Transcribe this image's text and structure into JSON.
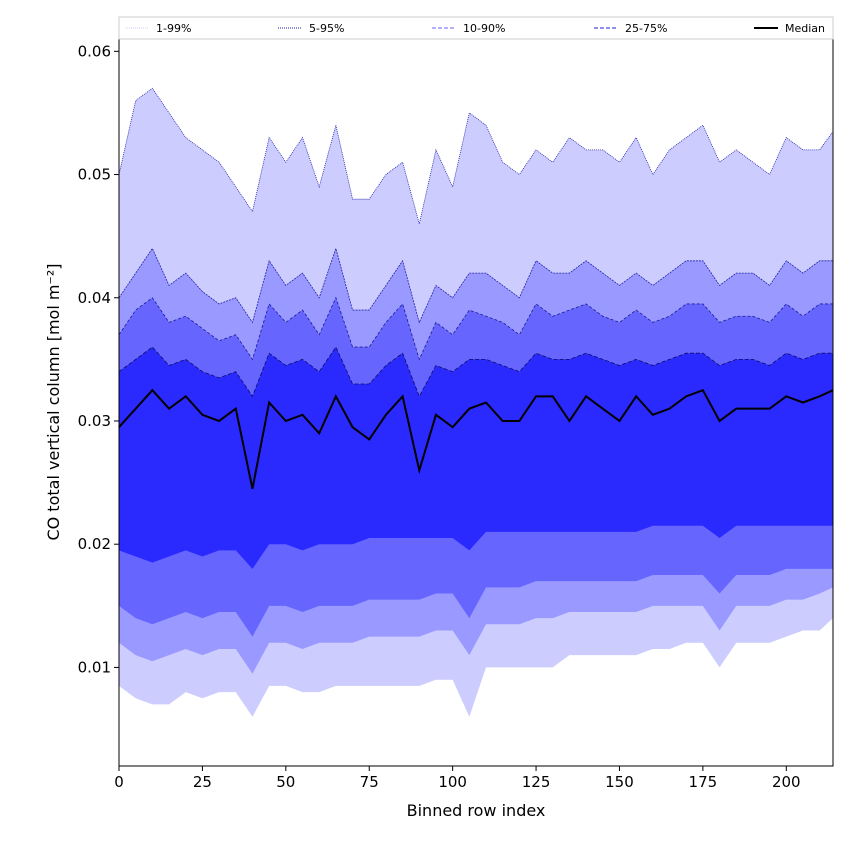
{
  "chart_data": {
    "type": "area",
    "title": "",
    "xlabel": "Binned row index",
    "ylabel": "CO total vertical column [mol m⁻²]",
    "xlim": [
      0,
      214
    ],
    "ylim": [
      0.002,
      0.061
    ],
    "xticks": [
      0,
      25,
      50,
      75,
      100,
      125,
      150,
      175,
      200
    ],
    "yticks": [
      0.01,
      0.02,
      0.03,
      0.04,
      0.05,
      0.06
    ],
    "ytick_labels": [
      "0.01",
      "0.02",
      "0.03",
      "0.04",
      "0.05",
      "0.06"
    ],
    "grid": false,
    "legend_position": "top",
    "legend": [
      {
        "label": "1-99%",
        "color": "#ccccff",
        "style": "dotted"
      },
      {
        "label": "5-95%",
        "color": "#2222aa",
        "style": "dotted"
      },
      {
        "label": "10-90%",
        "color": "#6666ff",
        "style": "dashed"
      },
      {
        "label": "25-75%",
        "color": "#2222dd",
        "style": "dashed"
      },
      {
        "label": "Median",
        "color": "#000000",
        "style": "solid"
      }
    ],
    "x": [
      0,
      5,
      10,
      15,
      20,
      25,
      30,
      35,
      40,
      45,
      50,
      55,
      60,
      65,
      70,
      75,
      80,
      85,
      90,
      95,
      100,
      105,
      110,
      115,
      120,
      125,
      130,
      135,
      140,
      145,
      150,
      155,
      160,
      165,
      170,
      175,
      180,
      185,
      190,
      195,
      200,
      205,
      210,
      214
    ],
    "bands": [
      {
        "name": "1-99%",
        "color": "#ccccff",
        "lower": [
          0.0085,
          0.0075,
          0.007,
          0.007,
          0.008,
          0.0075,
          0.008,
          0.008,
          0.006,
          0.0085,
          0.0085,
          0.008,
          0.008,
          0.0085,
          0.0085,
          0.0085,
          0.0085,
          0.0085,
          0.0085,
          0.009,
          0.009,
          0.006,
          0.01,
          0.01,
          0.01,
          0.01,
          0.01,
          0.011,
          0.011,
          0.011,
          0.011,
          0.011,
          0.0115,
          0.0115,
          0.012,
          0.012,
          0.01,
          0.012,
          0.012,
          0.012,
          0.0125,
          0.013,
          0.013,
          0.014
        ],
        "upper": [
          0.05,
          0.056,
          0.057,
          0.055,
          0.053,
          0.052,
          0.051,
          0.049,
          0.047,
          0.053,
          0.051,
          0.053,
          0.049,
          0.054,
          0.048,
          0.048,
          0.05,
          0.051,
          0.046,
          0.052,
          0.049,
          0.055,
          0.054,
          0.051,
          0.05,
          0.052,
          0.051,
          0.053,
          0.052,
          0.052,
          0.051,
          0.053,
          0.05,
          0.052,
          0.053,
          0.054,
          0.051,
          0.052,
          0.051,
          0.05,
          0.053,
          0.052,
          0.052,
          0.0535
        ]
      },
      {
        "name": "5-95%",
        "color": "#9999ff",
        "lower": [
          0.012,
          0.011,
          0.0105,
          0.011,
          0.0115,
          0.011,
          0.0115,
          0.0115,
          0.0095,
          0.012,
          0.012,
          0.0115,
          0.012,
          0.012,
          0.012,
          0.0125,
          0.0125,
          0.0125,
          0.0125,
          0.013,
          0.013,
          0.011,
          0.0135,
          0.0135,
          0.0135,
          0.014,
          0.014,
          0.0145,
          0.0145,
          0.0145,
          0.0145,
          0.0145,
          0.015,
          0.015,
          0.015,
          0.015,
          0.013,
          0.015,
          0.015,
          0.015,
          0.0155,
          0.0155,
          0.016,
          0.0165
        ],
        "upper": [
          0.04,
          0.042,
          0.044,
          0.041,
          0.042,
          0.0405,
          0.0395,
          0.04,
          0.038,
          0.043,
          0.041,
          0.042,
          0.04,
          0.044,
          0.039,
          0.039,
          0.041,
          0.043,
          0.038,
          0.041,
          0.04,
          0.042,
          0.042,
          0.041,
          0.04,
          0.043,
          0.042,
          0.042,
          0.043,
          0.042,
          0.041,
          0.042,
          0.041,
          0.042,
          0.043,
          0.043,
          0.041,
          0.042,
          0.042,
          0.041,
          0.043,
          0.042,
          0.043,
          0.043
        ]
      },
      {
        "name": "10-90%",
        "color": "#6666ff",
        "lower": [
          0.015,
          0.014,
          0.0135,
          0.014,
          0.0145,
          0.014,
          0.0145,
          0.0145,
          0.0125,
          0.015,
          0.015,
          0.0145,
          0.015,
          0.015,
          0.015,
          0.0155,
          0.0155,
          0.0155,
          0.0155,
          0.016,
          0.016,
          0.014,
          0.0165,
          0.0165,
          0.0165,
          0.017,
          0.017,
          0.017,
          0.017,
          0.017,
          0.017,
          0.017,
          0.0175,
          0.0175,
          0.0175,
          0.0175,
          0.016,
          0.0175,
          0.0175,
          0.0175,
          0.018,
          0.018,
          0.018,
          0.018
        ],
        "upper": [
          0.037,
          0.039,
          0.04,
          0.038,
          0.0385,
          0.0375,
          0.0365,
          0.037,
          0.035,
          0.0395,
          0.038,
          0.039,
          0.037,
          0.04,
          0.036,
          0.036,
          0.038,
          0.0395,
          0.035,
          0.038,
          0.037,
          0.039,
          0.0385,
          0.038,
          0.037,
          0.0395,
          0.0385,
          0.039,
          0.0395,
          0.0385,
          0.038,
          0.039,
          0.038,
          0.0385,
          0.0395,
          0.0395,
          0.038,
          0.0385,
          0.0385,
          0.038,
          0.0395,
          0.0385,
          0.0395,
          0.0395
        ]
      },
      {
        "name": "25-75%",
        "color": "#2a2aff",
        "lower": [
          0.0195,
          0.019,
          0.0185,
          0.019,
          0.0195,
          0.019,
          0.0195,
          0.0195,
          0.018,
          0.02,
          0.02,
          0.0195,
          0.02,
          0.02,
          0.02,
          0.0205,
          0.0205,
          0.0205,
          0.0205,
          0.0205,
          0.0205,
          0.0195,
          0.021,
          0.021,
          0.021,
          0.021,
          0.021,
          0.021,
          0.021,
          0.021,
          0.021,
          0.021,
          0.0215,
          0.0215,
          0.0215,
          0.0215,
          0.0205,
          0.0215,
          0.0215,
          0.0215,
          0.0215,
          0.0215,
          0.0215,
          0.0215
        ],
        "upper": [
          0.034,
          0.035,
          0.036,
          0.0345,
          0.035,
          0.034,
          0.0335,
          0.034,
          0.032,
          0.0355,
          0.0345,
          0.035,
          0.034,
          0.036,
          0.033,
          0.033,
          0.0345,
          0.0355,
          0.032,
          0.0345,
          0.034,
          0.035,
          0.035,
          0.0345,
          0.034,
          0.0355,
          0.035,
          0.035,
          0.0355,
          0.035,
          0.0345,
          0.035,
          0.0345,
          0.035,
          0.0355,
          0.0355,
          0.0345,
          0.035,
          0.035,
          0.0345,
          0.0355,
          0.035,
          0.0355,
          0.0355
        ]
      }
    ],
    "median": {
      "name": "Median",
      "color": "#000000",
      "values": [
        0.0295,
        0.031,
        0.0325,
        0.031,
        0.032,
        0.0305,
        0.03,
        0.031,
        0.0245,
        0.0315,
        0.03,
        0.0305,
        0.029,
        0.032,
        0.0295,
        0.0285,
        0.0305,
        0.032,
        0.026,
        0.0305,
        0.0295,
        0.031,
        0.0315,
        0.03,
        0.03,
        0.032,
        0.032,
        0.03,
        0.032,
        0.031,
        0.03,
        0.032,
        0.0305,
        0.031,
        0.032,
        0.0325,
        0.03,
        0.031,
        0.031,
        0.031,
        0.032,
        0.0315,
        0.032,
        0.0325
      ]
    }
  }
}
